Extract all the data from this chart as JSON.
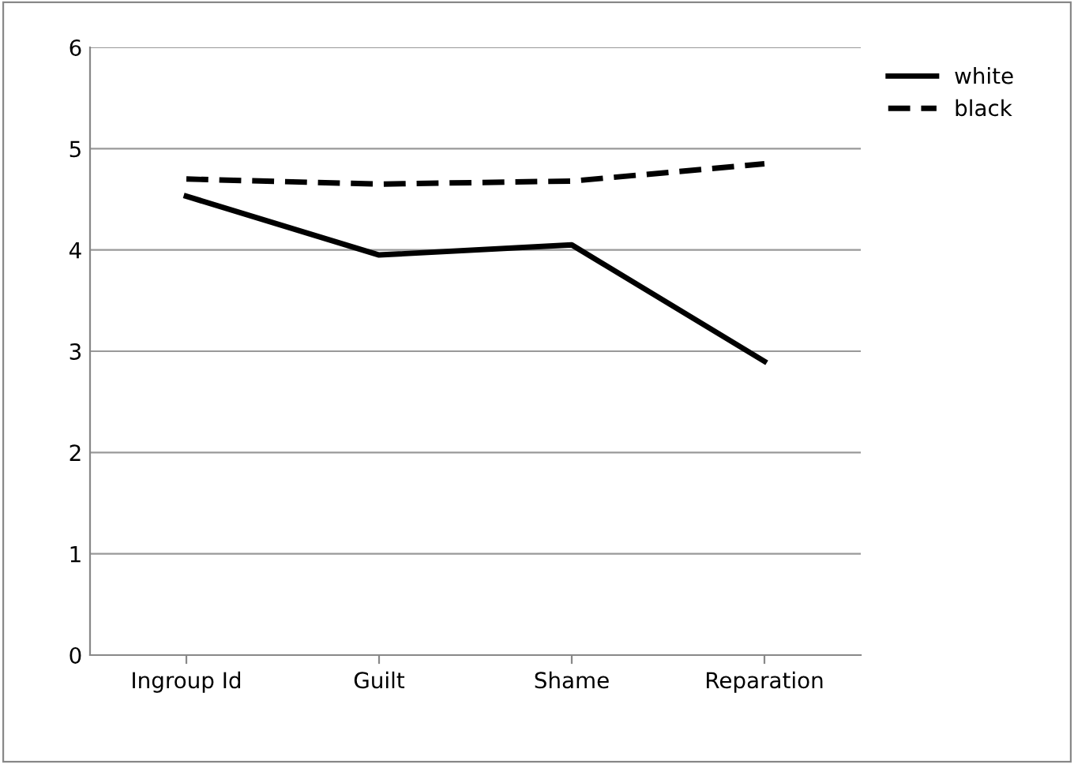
{
  "chart_data": {
    "type": "line",
    "categories": [
      "Ingroup Id",
      "Guilt",
      "Shame",
      "Reparation"
    ],
    "series": [
      {
        "name": "white",
        "color": "#000000",
        "line_style": "solid",
        "values": [
          4.53,
          3.95,
          4.05,
          2.9
        ]
      },
      {
        "name": "black",
        "color": "#000000",
        "line_style": "dashed",
        "values": [
          4.7,
          4.65,
          4.68,
          4.85
        ]
      }
    ],
    "ylim": [
      0,
      6
    ],
    "yticks": [
      0,
      1,
      2,
      3,
      4,
      5,
      6
    ],
    "grid": "y",
    "legend": "top right",
    "marker": "none"
  }
}
